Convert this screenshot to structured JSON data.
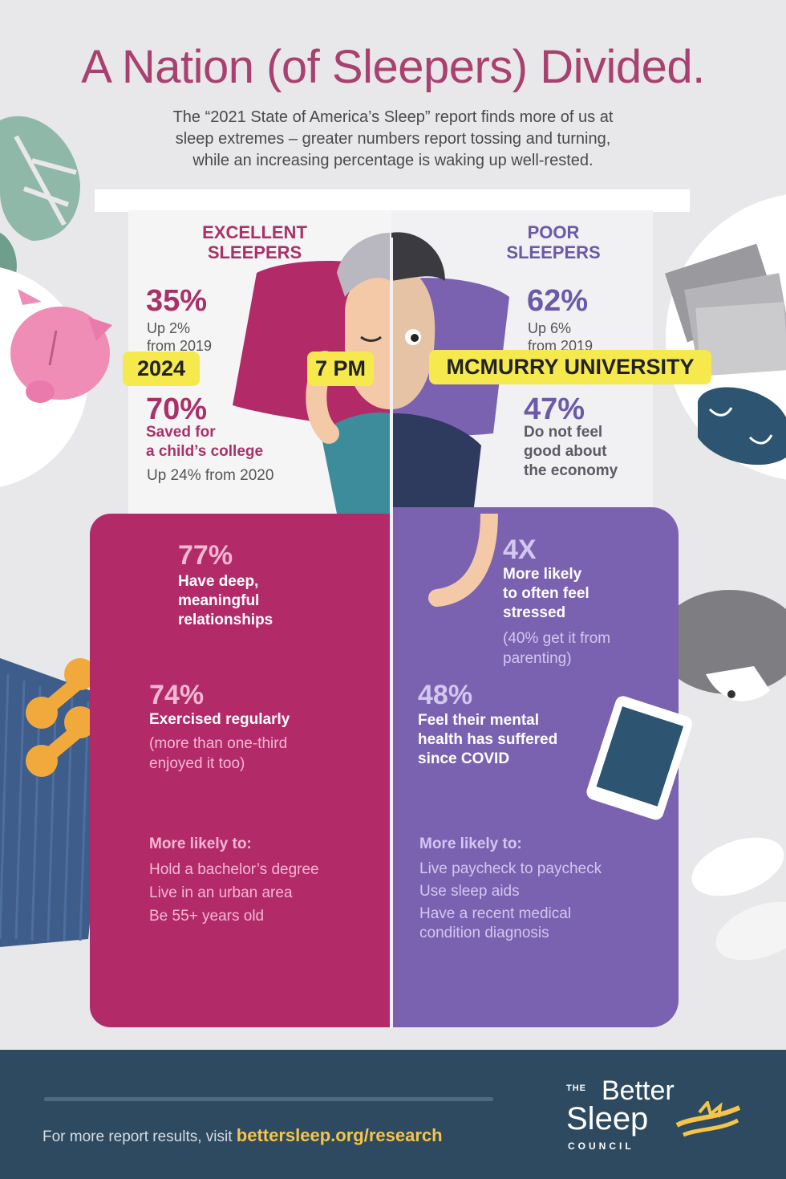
{
  "title": "A Nation (of Sleepers) Divided.",
  "intro": {
    "line1": "The “2021 State of America’s Sleep” report finds more of us at",
    "line2": "sleep extremes – greater numbers report tossing and turning,",
    "line3": "while an increasing percentage is waking up well-rested."
  },
  "excellent": {
    "heading1": "EXCELLENT",
    "heading2": "SLEEPERS",
    "stat1_value": "35%",
    "stat1_line1": "Up 2%",
    "stat1_line2": "from 2019",
    "stat2_value": "70%",
    "stat2_line1": "Saved for",
    "stat2_line2": "a child’s college",
    "stat2_line3": "Up 24% from 2020",
    "stat3_value": "77%",
    "stat3_line1": "Have deep,",
    "stat3_line2": "meaningful",
    "stat3_line3": "relationships",
    "stat4_value": "74%",
    "stat4_line1": "Exercised regularly",
    "stat4_line2": "(more than one-third",
    "stat4_line3": "enjoyed it too)",
    "likely_heading": "More likely to:",
    "likely": [
      "Hold a bachelor’s degree",
      "Live in an urban area",
      "Be 55+ years old"
    ]
  },
  "poor": {
    "heading1": "POOR",
    "heading2": "SLEEPERS",
    "stat1_value": "62%",
    "stat1_line1": "Up 6%",
    "stat1_line2": "from 2019",
    "stat2_value": "47%",
    "stat2_line1": "Do not feel",
    "stat2_line2": "good about",
    "stat2_line3": "the economy",
    "stat3_value": "4X",
    "stat3_line1": "More likely",
    "stat3_line2": "to often feel",
    "stat3_line3": "stressed",
    "stat3_line4": "(40% get it from",
    "stat3_line5": "parenting)",
    "stat4_value": "48%",
    "stat4_line1": "Feel their mental",
    "stat4_line2": "health has suffered",
    "stat4_line3": "since COVID",
    "likely_heading": "More likely to:",
    "likely": [
      "Live paycheck to paycheck",
      "Use sleep aids",
      "Have a recent medical",
      "condition diagnosis"
    ]
  },
  "stickers": {
    "year": "2024",
    "time": "7 PM",
    "school": "MCMURRY UNIVERSITY"
  },
  "footer": {
    "visit_text": "For more report results, visit",
    "link": "bettersleep.org/research",
    "logo_the": "THE",
    "logo_better": "Better",
    "logo_sleep": "Sleep",
    "logo_council": "COUNCIL"
  },
  "colors": {
    "excellent": "#b32a68",
    "poor": "#7a62b0",
    "footer": "#2d4a60",
    "sticker": "#f6e94e"
  }
}
